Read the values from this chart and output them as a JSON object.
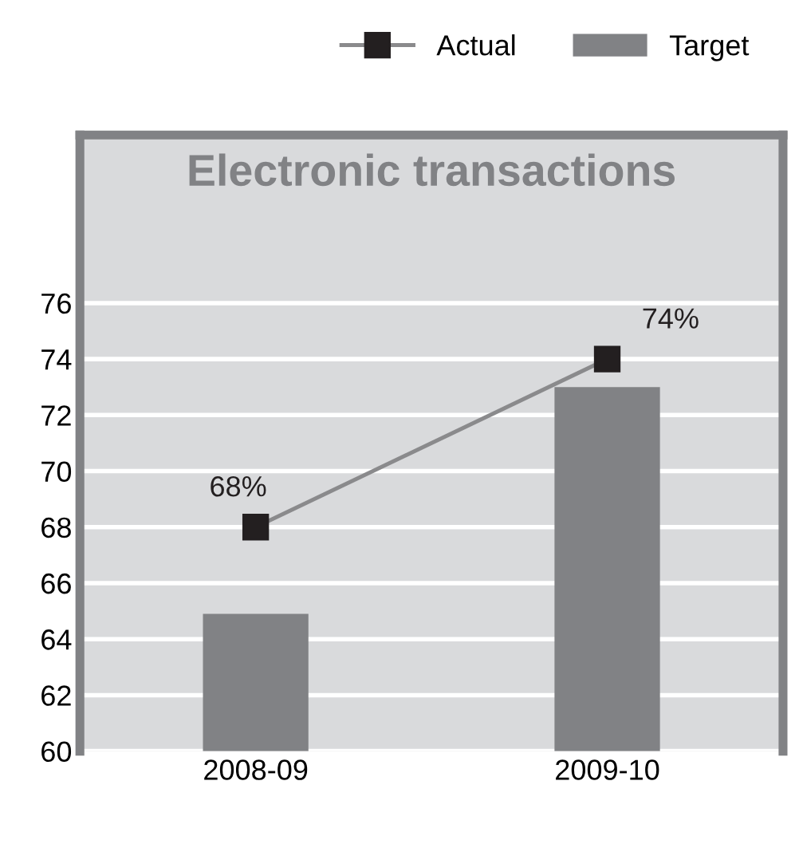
{
  "chart_data": {
    "type": "bar",
    "title": "Electronic transactions",
    "categories": [
      "2008-09",
      "2009-10"
    ],
    "series": [
      {
        "name": "Actual",
        "type": "line",
        "color": "#231f20",
        "values": [
          68,
          74
        ],
        "value_labels": [
          "68%",
          "74%"
        ],
        "marker": "square"
      },
      {
        "name": "Target",
        "color": "#818285",
        "values": [
          64.9,
          73
        ]
      }
    ],
    "ylim": [
      60,
      82
    ],
    "yticks": [
      60,
      62,
      64,
      66,
      68,
      70,
      72,
      74,
      76
    ],
    "grid": "y",
    "legend": "top right"
  }
}
